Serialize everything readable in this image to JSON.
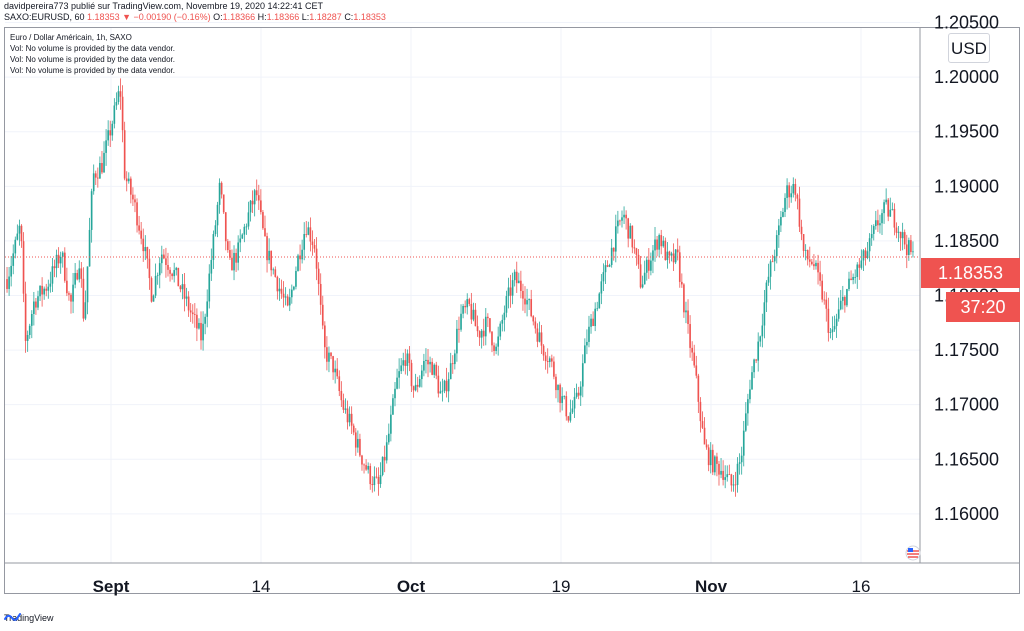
{
  "header": {
    "line1": "davidpereira773 publié sur TradingView.com, Novembre 19, 2020 14:22:41 CET",
    "symbol": "SAXO:EURUSD, 60",
    "last": "1.18353",
    "change": "▼ −0.00190 (−0.16%)",
    "o_label": "O:",
    "o_value": "1.18366",
    "h_label": "H:",
    "h_value": "1.18366",
    "l_label": "L:",
    "l_value": "1.18287",
    "c_label": "C:",
    "c_value": "1.18353"
  },
  "legend": {
    "title": "Euro / Dollar Américain, 1h, SAXO",
    "vol1": "Vol: No volume is provided by the data vendor.",
    "vol2": "Vol: No volume is provided by the data vendor.",
    "vol3": "Vol: No volume is provided by the data vendor."
  },
  "currency_button": "USD",
  "price_tag": "1.18353",
  "timer_tag": "37:20",
  "footer": {
    "brand": "TradingView"
  },
  "colors": {
    "up": "#26a69a",
    "down": "#ef5350",
    "grid": "#f0f3fa",
    "current_price_line": "#ef5350"
  },
  "chart_data": {
    "type": "candlestick",
    "title": "Euro / Dollar Américain, 1h, SAXO",
    "symbol": "SAXO:EURUSD",
    "interval": "1h",
    "ylim": [
      1.1555,
      1.2045
    ],
    "y_ticks": [
      "1.16000",
      "1.16500",
      "1.17000",
      "1.17500",
      "1.18000",
      "1.18500",
      "1.19000",
      "1.19500",
      "1.20000",
      "1.20500"
    ],
    "x_ticks": [
      {
        "label": "Sept",
        "bold": true
      },
      {
        "label": "14",
        "bold": false
      },
      {
        "label": "Oct",
        "bold": true
      },
      {
        "label": "19",
        "bold": false
      },
      {
        "label": "Nov",
        "bold": true
      },
      {
        "label": "16",
        "bold": false
      }
    ],
    "current_price": 1.18353,
    "grid": true,
    "path": [
      [
        0.0,
        1.1815
      ],
      [
        0.015,
        1.1865
      ],
      [
        0.02,
        1.1755
      ],
      [
        0.03,
        1.1795
      ],
      [
        0.045,
        1.181
      ],
      [
        0.06,
        1.184
      ],
      [
        0.07,
        1.179
      ],
      [
        0.08,
        1.1835
      ],
      [
        0.085,
        1.1775
      ],
      [
        0.095,
        1.191
      ],
      [
        0.105,
        1.192
      ],
      [
        0.115,
        1.1955
      ],
      [
        0.125,
        1.199
      ],
      [
        0.13,
        1.191
      ],
      [
        0.14,
        1.1885
      ],
      [
        0.15,
        1.185
      ],
      [
        0.16,
        1.18
      ],
      [
        0.17,
        1.184
      ],
      [
        0.185,
        1.182
      ],
      [
        0.2,
        1.179
      ],
      [
        0.215,
        1.176
      ],
      [
        0.225,
        1.183
      ],
      [
        0.235,
        1.19
      ],
      [
        0.245,
        1.1825
      ],
      [
        0.255,
        1.184
      ],
      [
        0.265,
        1.187
      ],
      [
        0.275,
        1.1895
      ],
      [
        0.285,
        1.1845
      ],
      [
        0.295,
        1.182
      ],
      [
        0.31,
        1.1785
      ],
      [
        0.32,
        1.183
      ],
      [
        0.33,
        1.1865
      ],
      [
        0.34,
        1.1845
      ],
      [
        0.35,
        1.175
      ],
      [
        0.36,
        1.1735
      ],
      [
        0.37,
        1.17
      ],
      [
        0.38,
        1.168
      ],
      [
        0.39,
        1.1655
      ],
      [
        0.4,
        1.1635
      ],
      [
        0.41,
        1.1625
      ],
      [
        0.42,
        1.1665
      ],
      [
        0.43,
        1.172
      ],
      [
        0.44,
        1.1745
      ],
      [
        0.45,
        1.171
      ],
      [
        0.46,
        1.174
      ],
      [
        0.47,
        1.1735
      ],
      [
        0.48,
        1.1705
      ],
      [
        0.49,
        1.1735
      ],
      [
        0.5,
        1.178
      ],
      [
        0.51,
        1.179
      ],
      [
        0.52,
        1.1765
      ],
      [
        0.53,
        1.1775
      ],
      [
        0.54,
        1.175
      ],
      [
        0.55,
        1.179
      ],
      [
        0.56,
        1.1815
      ],
      [
        0.57,
        1.1805
      ],
      [
        0.58,
        1.178
      ],
      [
        0.59,
        1.1755
      ],
      [
        0.6,
        1.174
      ],
      [
        0.61,
        1.171
      ],
      [
        0.62,
        1.169
      ],
      [
        0.63,
        1.1705
      ],
      [
        0.64,
        1.176
      ],
      [
        0.65,
        1.179
      ],
      [
        0.66,
        1.182
      ],
      [
        0.67,
        1.185
      ],
      [
        0.68,
        1.1875
      ],
      [
        0.69,
        1.185
      ],
      [
        0.7,
        1.181
      ],
      [
        0.71,
        1.1835
      ],
      [
        0.72,
        1.1855
      ],
      [
        0.73,
        1.183
      ],
      [
        0.74,
        1.1835
      ],
      [
        0.75,
        1.1775
      ],
      [
        0.76,
        1.1725
      ],
      [
        0.77,
        1.166
      ],
      [
        0.78,
        1.1645
      ],
      [
        0.79,
        1.164
      ],
      [
        0.8,
        1.1625
      ],
      [
        0.81,
        1.165
      ],
      [
        0.82,
        1.172
      ],
      [
        0.83,
        1.176
      ],
      [
        0.84,
        1.1815
      ],
      [
        0.85,
        1.185
      ],
      [
        0.86,
        1.1895
      ],
      [
        0.87,
        1.19
      ],
      [
        0.88,
        1.1835
      ],
      [
        0.89,
        1.183
      ],
      [
        0.9,
        1.18
      ],
      [
        0.91,
        1.176
      ],
      [
        0.92,
        1.179
      ],
      [
        0.93,
        1.181
      ],
      [
        0.94,
        1.1825
      ],
      [
        0.95,
        1.184
      ],
      [
        0.96,
        1.1865
      ],
      [
        0.97,
        1.188
      ],
      [
        0.98,
        1.187
      ],
      [
        0.99,
        1.185
      ],
      [
        1.0,
        1.1835
      ]
    ]
  }
}
